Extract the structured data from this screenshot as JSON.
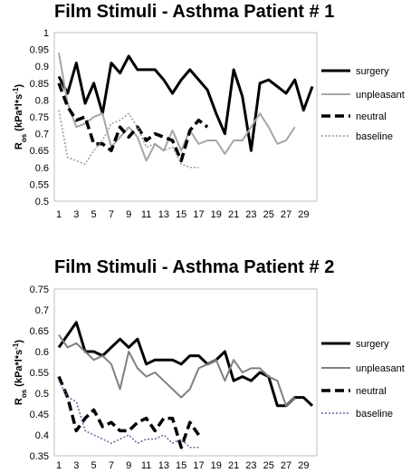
{
  "chart_data": [
    {
      "type": "line",
      "title": "Film Stimuli - Asthma Patient # 1",
      "ylabel": "Ros (kPa*l*s-1)",
      "ylabel_main": "R",
      "ylabel_sub": "os",
      "ylabel_rest": " (kPa*l*s",
      "ylabel_sup": "-1",
      "ylabel_end": ")",
      "ylim": [
        0.5,
        1.0
      ],
      "yticks": [
        "0.5",
        "0.55",
        "0.6",
        "0.65",
        "0.7",
        "0.75",
        "0.8",
        "0.85",
        "0.9",
        "0.95",
        "1"
      ],
      "xlim": [
        1,
        30
      ],
      "xticks": [
        1,
        3,
        5,
        7,
        9,
        11,
        13,
        15,
        17,
        19,
        21,
        23,
        25,
        27,
        29
      ],
      "legend_position": "right",
      "series": [
        {
          "name": "surgery",
          "color": "#000000",
          "dash": "",
          "width": 3,
          "x": [
            1,
            2,
            3,
            4,
            5,
            6,
            7,
            8,
            9,
            10,
            11,
            12,
            13,
            14,
            15,
            16,
            17,
            18,
            19,
            20,
            21,
            22,
            23,
            24,
            25,
            26,
            27,
            28,
            29,
            30
          ],
          "values": [
            0.87,
            0.82,
            0.91,
            0.79,
            0.85,
            0.76,
            0.91,
            0.88,
            0.93,
            0.89,
            0.89,
            0.89,
            0.86,
            0.82,
            0.86,
            0.89,
            0.86,
            0.83,
            0.76,
            0.7,
            0.89,
            0.81,
            0.65,
            0.85,
            0.86,
            0.84,
            0.82,
            0.86,
            0.77,
            0.84
          ]
        },
        {
          "name": "unpleasant",
          "color": "#a6a6a6",
          "dash": "",
          "width": 2,
          "x": [
            1,
            2,
            3,
            4,
            5,
            6,
            7,
            8,
            9,
            10,
            11,
            12,
            13,
            14,
            15,
            16,
            17,
            18,
            19,
            20,
            21,
            22,
            23,
            24,
            25,
            26,
            27,
            28
          ],
          "values": [
            0.94,
            0.79,
            0.72,
            0.73,
            0.75,
            0.76,
            0.66,
            0.69,
            0.72,
            0.69,
            0.62,
            0.67,
            0.65,
            0.71,
            0.65,
            0.71,
            0.67,
            0.68,
            0.68,
            0.64,
            0.68,
            0.68,
            0.72,
            0.76,
            0.72,
            0.67,
            0.68,
            0.72
          ]
        },
        {
          "name": "neutral",
          "color": "#000000",
          "dash": "10,5",
          "width": 3.5,
          "x": [
            1,
            2,
            3,
            4,
            5,
            6,
            7,
            8,
            9,
            10,
            11,
            12,
            13,
            14,
            15,
            16,
            17,
            18
          ],
          "values": [
            0.85,
            0.78,
            0.74,
            0.75,
            0.67,
            0.67,
            0.65,
            0.72,
            0.69,
            0.72,
            0.68,
            0.7,
            0.69,
            0.68,
            0.62,
            0.71,
            0.74,
            0.72
          ]
        },
        {
          "name": "baseline",
          "color": "#999999",
          "dash": "2,2",
          "width": 1.5,
          "x": [
            1,
            2,
            3,
            4,
            5,
            6,
            7,
            8,
            9,
            10,
            11,
            12,
            13,
            14,
            15,
            16,
            17
          ],
          "values": [
            0.77,
            0.63,
            0.62,
            0.61,
            0.65,
            0.68,
            0.73,
            0.74,
            0.76,
            0.72,
            0.66,
            0.67,
            0.65,
            0.66,
            0.61,
            0.6,
            0.6
          ]
        }
      ],
      "legend": [
        "surgery",
        "unpleasant",
        "neutral",
        "baseline"
      ]
    },
    {
      "type": "line",
      "title": "Film Stimuli - Asthma Patient # 2",
      "ylabel": "Ros (kPa*l*s-1)",
      "ylabel_main": "R",
      "ylabel_sub": "os",
      "ylabel_rest": " (kPa*l*s",
      "ylabel_sup": "-1",
      "ylabel_end": ")",
      "ylim": [
        0.35,
        0.75
      ],
      "yticks": [
        "0.35",
        "0.4",
        "0.45",
        "0.5",
        "0.55",
        "0.6",
        "0.65",
        "0.7",
        "0.75"
      ],
      "xlim": [
        1,
        30
      ],
      "xticks": [
        1,
        3,
        5,
        7,
        9,
        11,
        13,
        15,
        17,
        19,
        21,
        23,
        25,
        27,
        29
      ],
      "legend_position": "right",
      "series": [
        {
          "name": "surgery",
          "color": "#000000",
          "dash": "",
          "width": 3,
          "x": [
            1,
            2,
            3,
            4,
            5,
            6,
            7,
            8,
            9,
            10,
            11,
            12,
            13,
            14,
            15,
            16,
            17,
            18,
            19,
            20,
            21,
            22,
            23,
            24,
            25,
            26,
            27,
            28,
            29,
            30
          ],
          "values": [
            0.61,
            0.64,
            0.67,
            0.6,
            0.6,
            0.59,
            0.61,
            0.63,
            0.61,
            0.63,
            0.57,
            0.58,
            0.58,
            0.58,
            0.57,
            0.59,
            0.59,
            0.57,
            0.58,
            0.6,
            0.53,
            0.54,
            0.53,
            0.55,
            0.54,
            0.47,
            0.47,
            0.49,
            0.49,
            0.47
          ]
        },
        {
          "name": "unpleasant",
          "color": "#808080",
          "dash": "",
          "width": 2,
          "x": [
            1,
            2,
            3,
            4,
            5,
            6,
            7,
            8,
            9,
            10,
            11,
            12,
            13,
            14,
            15,
            16,
            17,
            18,
            19,
            20,
            21,
            22,
            23,
            24,
            25,
            26,
            27,
            28
          ],
          "values": [
            0.64,
            0.61,
            0.62,
            0.6,
            0.58,
            0.59,
            0.57,
            0.51,
            0.6,
            0.56,
            0.54,
            0.55,
            0.53,
            0.51,
            0.49,
            0.51,
            0.56,
            0.57,
            0.58,
            0.53,
            0.58,
            0.55,
            0.56,
            0.56,
            0.54,
            0.53,
            0.47,
            0.49
          ]
        },
        {
          "name": "neutral",
          "color": "#000000",
          "dash": "10,5",
          "width": 3.5,
          "x": [
            1,
            2,
            3,
            4,
            5,
            6,
            7,
            8,
            9,
            10,
            11,
            12,
            13,
            14,
            15,
            16,
            17
          ],
          "values": [
            0.54,
            0.49,
            0.41,
            0.44,
            0.46,
            0.42,
            0.43,
            0.41,
            0.41,
            0.43,
            0.44,
            0.41,
            0.44,
            0.44,
            0.37,
            0.43,
            0.4
          ]
        },
        {
          "name": "baseline",
          "color": "#7b5c9e",
          "dash": "2,2",
          "width": 1.5,
          "x": [
            1,
            2,
            3,
            4,
            5,
            6,
            7,
            8,
            9,
            10,
            11,
            12,
            13,
            14,
            15,
            16,
            17
          ],
          "values": [
            0.53,
            0.49,
            0.48,
            0.41,
            0.4,
            0.39,
            0.38,
            0.39,
            0.4,
            0.38,
            0.39,
            0.39,
            0.4,
            0.38,
            0.39,
            0.37,
            0.37
          ]
        }
      ],
      "legend": [
        "surgery",
        "unpleasant",
        "neutral",
        "baseline"
      ]
    }
  ]
}
